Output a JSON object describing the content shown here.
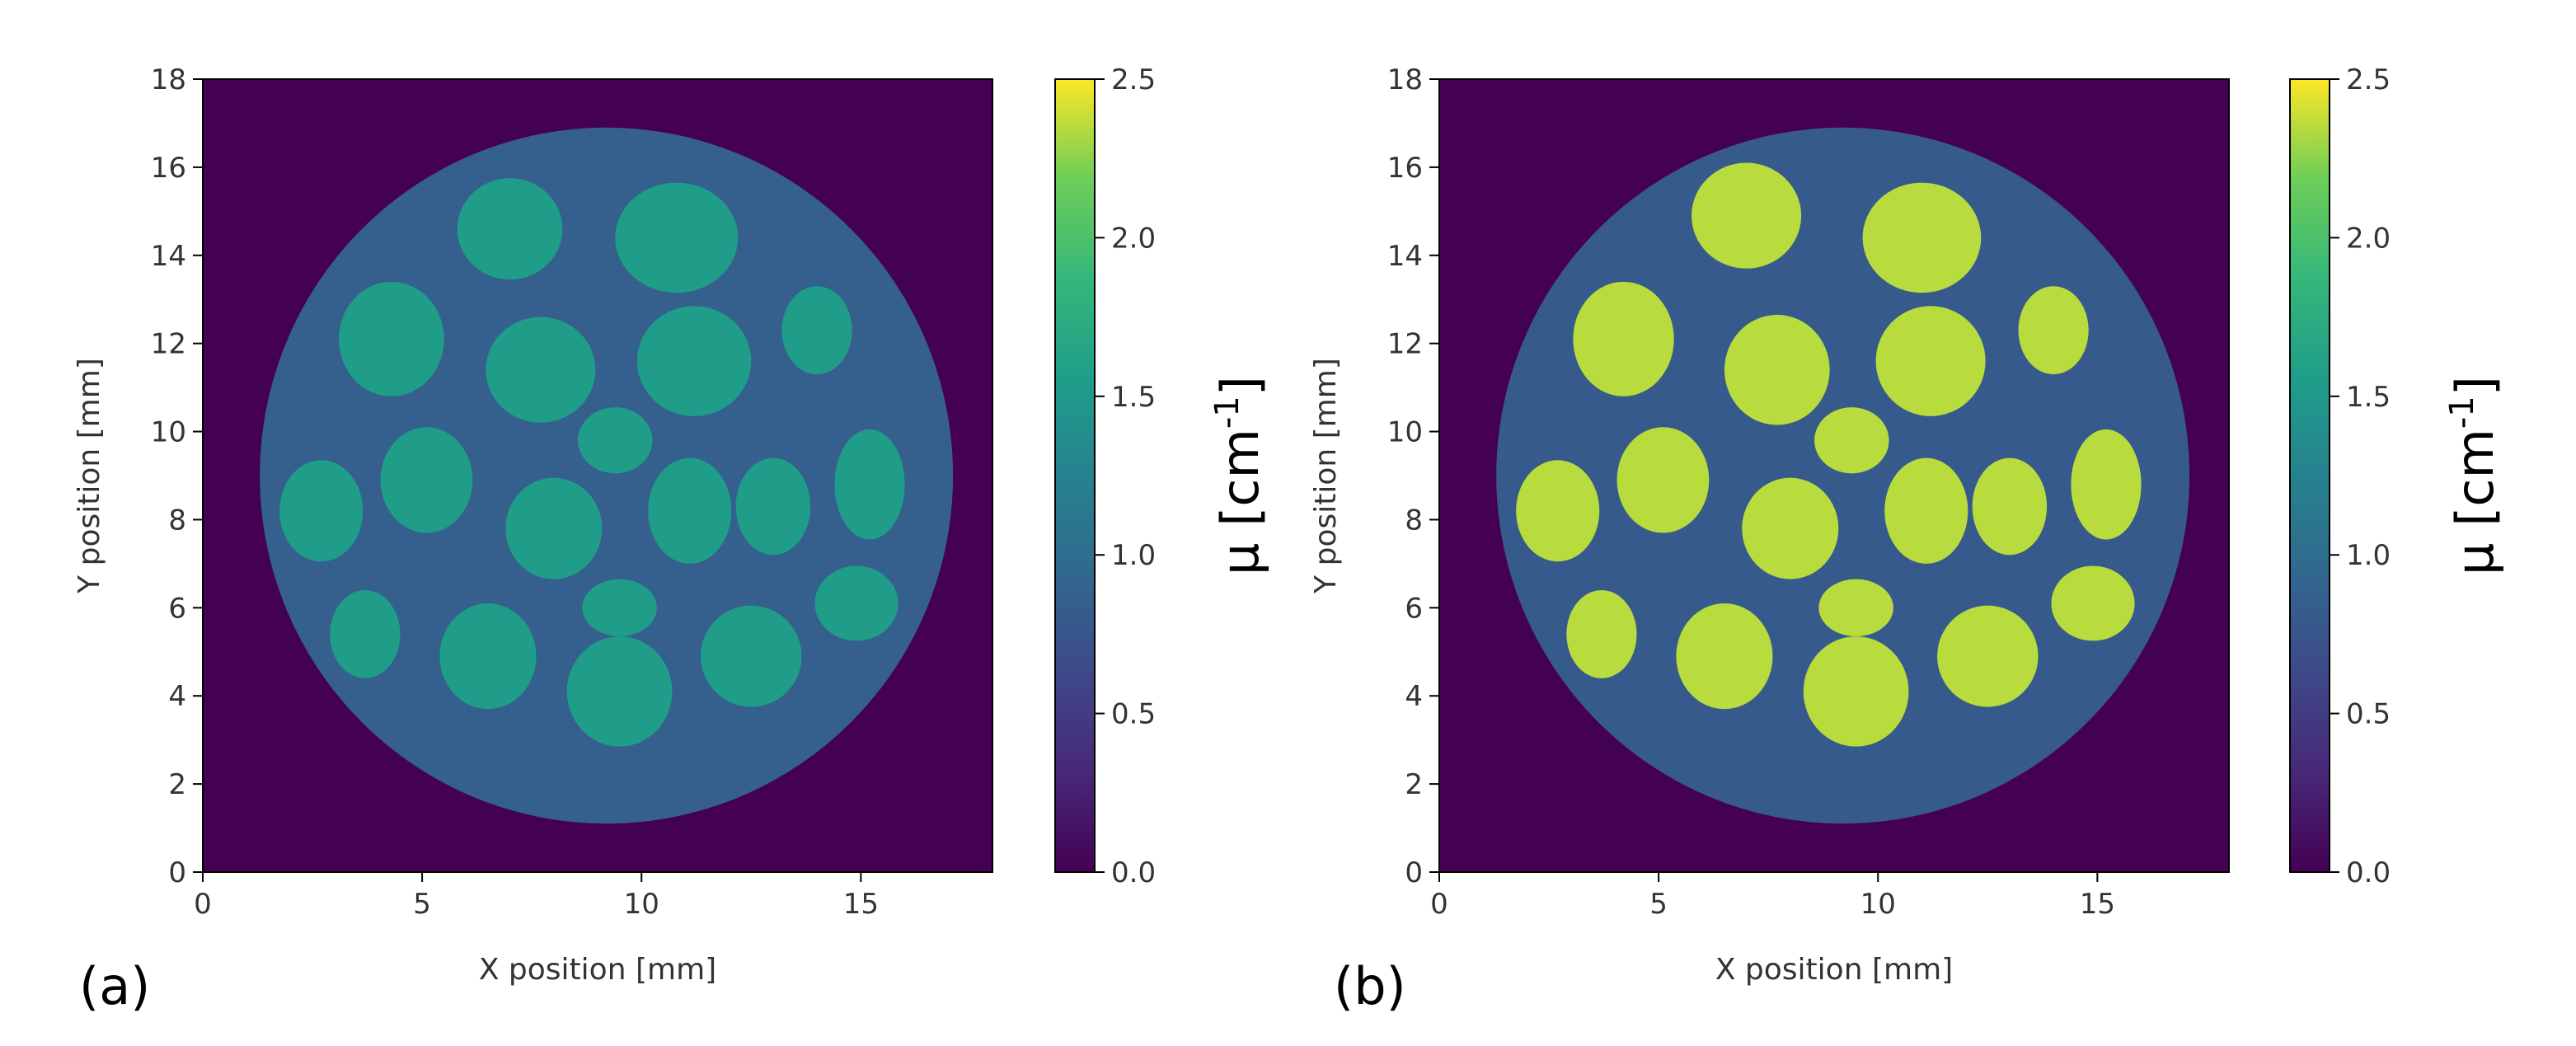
{
  "figure_labels": {
    "a": "(a)",
    "b": "(b)"
  },
  "chart_data": [
    {
      "type": "heatmap",
      "panel": "(a)",
      "title": "",
      "xlabel": "X position [mm]",
      "ylabel": "Y position [mm]",
      "xlim": [
        0,
        18
      ],
      "ylim": [
        0,
        18
      ],
      "xticks": [
        0,
        5,
        10,
        15
      ],
      "yticks": [
        0,
        2,
        4,
        6,
        8,
        10,
        12,
        14,
        16,
        18
      ],
      "grid": false,
      "colormap": "viridis",
      "colorbar": {
        "label_main": "μ [cm",
        "label_sup": "-1",
        "label_close": "]",
        "range": [
          0.0,
          2.5
        ],
        "ticks": [
          "0.0",
          "0.5",
          "1.0",
          "1.5",
          "2.0",
          "2.5"
        ]
      },
      "phantom": {
        "center": [
          9.2,
          9.0
        ],
        "radius": 7.9,
        "background_mu": 0.85
      },
      "inserts": [
        {
          "cx": 7.0,
          "cy": 14.6,
          "rx": 1.2,
          "ry": 1.15,
          "mu": 1.55
        },
        {
          "cx": 10.8,
          "cy": 14.4,
          "rx": 1.4,
          "ry": 1.25,
          "mu": 1.55
        },
        {
          "cx": 4.3,
          "cy": 12.1,
          "rx": 1.2,
          "ry": 1.3,
          "mu": 1.55
        },
        {
          "cx": 7.7,
          "cy": 11.4,
          "rx": 1.25,
          "ry": 1.2,
          "mu": 1.55
        },
        {
          "cx": 11.2,
          "cy": 11.6,
          "rx": 1.3,
          "ry": 1.25,
          "mu": 1.55
        },
        {
          "cx": 14.0,
          "cy": 12.3,
          "rx": 0.8,
          "ry": 1.0,
          "mu": 1.55
        },
        {
          "cx": 9.4,
          "cy": 9.8,
          "rx": 0.85,
          "ry": 0.75,
          "mu": 1.55
        },
        {
          "cx": 5.1,
          "cy": 8.9,
          "rx": 1.05,
          "ry": 1.2,
          "mu": 1.55
        },
        {
          "cx": 8.0,
          "cy": 7.8,
          "rx": 1.1,
          "ry": 1.15,
          "mu": 1.55
        },
        {
          "cx": 11.1,
          "cy": 8.2,
          "rx": 0.95,
          "ry": 1.2,
          "mu": 1.55
        },
        {
          "cx": 13.0,
          "cy": 8.3,
          "rx": 0.85,
          "ry": 1.1,
          "mu": 1.55
        },
        {
          "cx": 15.2,
          "cy": 8.8,
          "rx": 0.8,
          "ry": 1.25,
          "mu": 1.55
        },
        {
          "cx": 2.7,
          "cy": 8.2,
          "rx": 0.95,
          "ry": 1.15,
          "mu": 1.55
        },
        {
          "cx": 9.5,
          "cy": 6.0,
          "rx": 0.85,
          "ry": 0.65,
          "mu": 1.55
        },
        {
          "cx": 3.7,
          "cy": 5.4,
          "rx": 0.8,
          "ry": 1.0,
          "mu": 1.55
        },
        {
          "cx": 6.5,
          "cy": 4.9,
          "rx": 1.1,
          "ry": 1.2,
          "mu": 1.55
        },
        {
          "cx": 9.5,
          "cy": 4.1,
          "rx": 1.2,
          "ry": 1.25,
          "mu": 1.55
        },
        {
          "cx": 12.5,
          "cy": 4.9,
          "rx": 1.15,
          "ry": 1.15,
          "mu": 1.55
        },
        {
          "cx": 14.9,
          "cy": 6.1,
          "rx": 0.95,
          "ry": 0.85,
          "mu": 1.55
        }
      ]
    },
    {
      "type": "heatmap",
      "panel": "(b)",
      "title": "",
      "xlabel": "X position [mm]",
      "ylabel": "Y position [mm]",
      "xlim": [
        0,
        18
      ],
      "ylim": [
        0,
        18
      ],
      "xticks": [
        0,
        5,
        10,
        15
      ],
      "yticks": [
        0,
        2,
        4,
        6,
        8,
        10,
        12,
        14,
        16,
        18
      ],
      "grid": false,
      "colormap": "viridis",
      "colorbar": {
        "label_main": "μ [cm",
        "label_sup": "-1",
        "label_close": "]",
        "range": [
          0.0,
          2.5
        ],
        "ticks": [
          "0.0",
          "0.5",
          "1.0",
          "1.5",
          "2.0",
          "2.5"
        ]
      },
      "phantom": {
        "center": [
          9.2,
          9.0
        ],
        "radius": 7.9,
        "background_mu": 0.8
      },
      "inserts": [
        {
          "cx": 7.0,
          "cy": 14.9,
          "rx": 1.25,
          "ry": 1.2,
          "mu": 2.35
        },
        {
          "cx": 11.0,
          "cy": 14.4,
          "rx": 1.35,
          "ry": 1.25,
          "mu": 2.35
        },
        {
          "cx": 4.2,
          "cy": 12.1,
          "rx": 1.15,
          "ry": 1.3,
          "mu": 2.35
        },
        {
          "cx": 7.7,
          "cy": 11.4,
          "rx": 1.2,
          "ry": 1.25,
          "mu": 2.35
        },
        {
          "cx": 11.2,
          "cy": 11.6,
          "rx": 1.25,
          "ry": 1.25,
          "mu": 2.35
        },
        {
          "cx": 14.0,
          "cy": 12.3,
          "rx": 0.8,
          "ry": 1.0,
          "mu": 2.35
        },
        {
          "cx": 9.4,
          "cy": 9.8,
          "rx": 0.85,
          "ry": 0.75,
          "mu": 2.35
        },
        {
          "cx": 5.1,
          "cy": 8.9,
          "rx": 1.05,
          "ry": 1.2,
          "mu": 2.35
        },
        {
          "cx": 8.0,
          "cy": 7.8,
          "rx": 1.1,
          "ry": 1.15,
          "mu": 2.35
        },
        {
          "cx": 11.1,
          "cy": 8.2,
          "rx": 0.95,
          "ry": 1.2,
          "mu": 2.35
        },
        {
          "cx": 13.0,
          "cy": 8.3,
          "rx": 0.85,
          "ry": 1.1,
          "mu": 2.35
        },
        {
          "cx": 15.2,
          "cy": 8.8,
          "rx": 0.8,
          "ry": 1.25,
          "mu": 2.35
        },
        {
          "cx": 2.7,
          "cy": 8.2,
          "rx": 0.95,
          "ry": 1.15,
          "mu": 2.35
        },
        {
          "cx": 9.5,
          "cy": 6.0,
          "rx": 0.85,
          "ry": 0.65,
          "mu": 2.35
        },
        {
          "cx": 3.7,
          "cy": 5.4,
          "rx": 0.8,
          "ry": 1.0,
          "mu": 2.35
        },
        {
          "cx": 6.5,
          "cy": 4.9,
          "rx": 1.1,
          "ry": 1.2,
          "mu": 2.35
        },
        {
          "cx": 9.5,
          "cy": 4.1,
          "rx": 1.2,
          "ry": 1.25,
          "mu": 2.35
        },
        {
          "cx": 12.5,
          "cy": 4.9,
          "rx": 1.15,
          "ry": 1.15,
          "mu": 2.35
        },
        {
          "cx": 14.9,
          "cy": 6.1,
          "rx": 0.95,
          "ry": 0.85,
          "mu": 2.35
        }
      ]
    }
  ]
}
